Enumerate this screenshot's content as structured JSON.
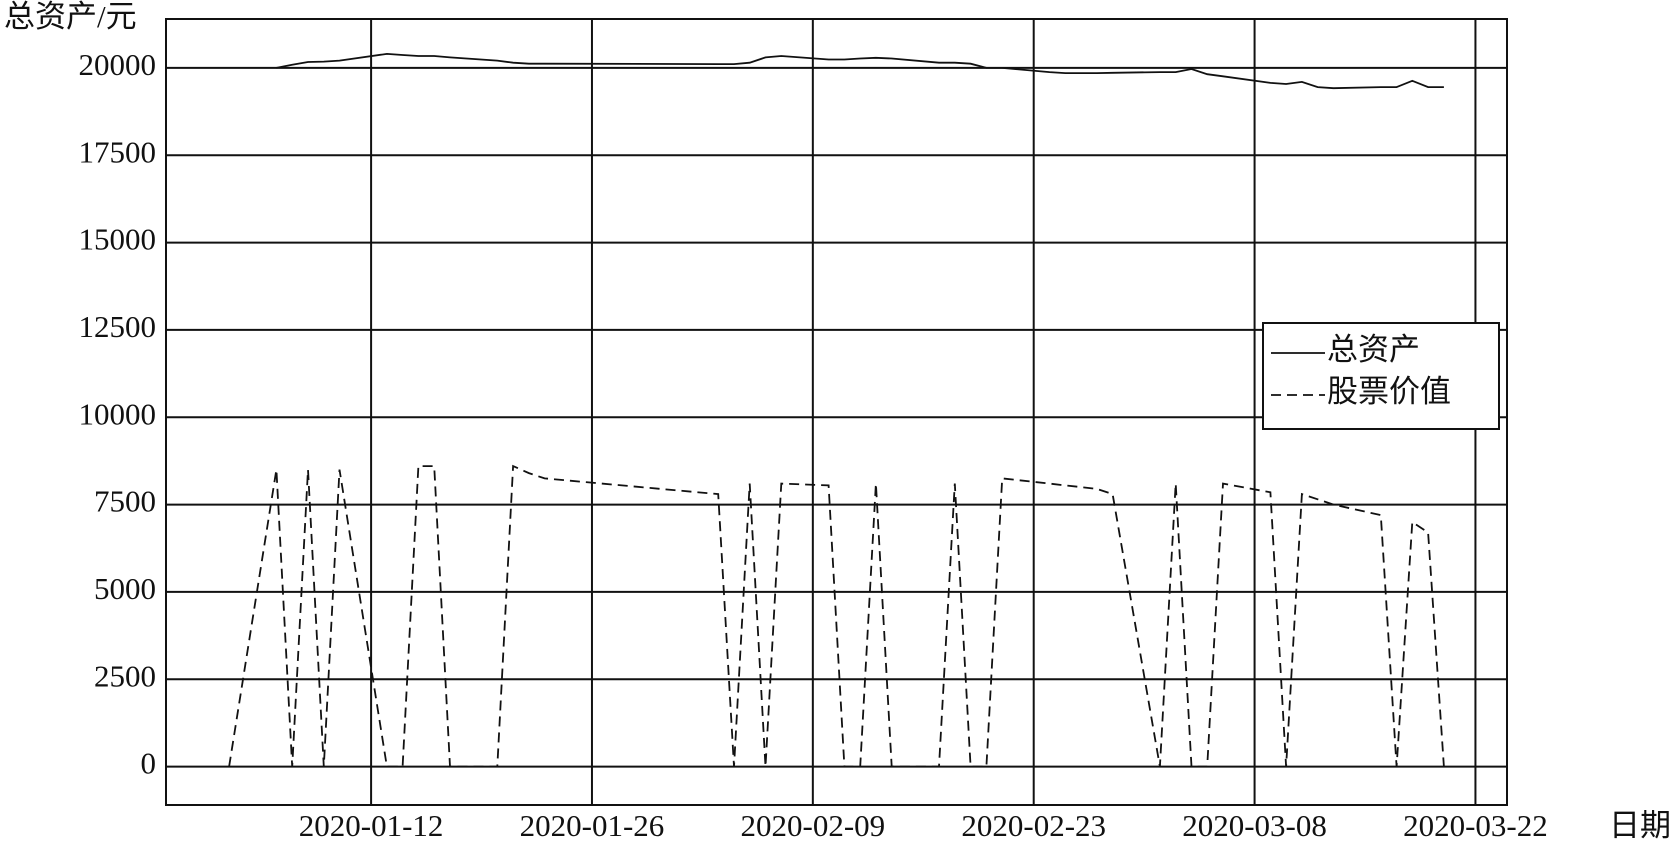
{
  "chart_data": {
    "type": "line",
    "y_label": "总资产/元",
    "x_label": "日期",
    "x": [
      "2020-01-03",
      "2020-01-06",
      "2020-01-07",
      "2020-01-08",
      "2020-01-09",
      "2020-01-10",
      "2020-01-13",
      "2020-01-14",
      "2020-01-15",
      "2020-01-16",
      "2020-01-17",
      "2020-01-20",
      "2020-01-21",
      "2020-01-22",
      "2020-01-23",
      "2020-02-03",
      "2020-02-04",
      "2020-02-05",
      "2020-02-06",
      "2020-02-07",
      "2020-02-10",
      "2020-02-11",
      "2020-02-12",
      "2020-02-13",
      "2020-02-14",
      "2020-02-17",
      "2020-02-18",
      "2020-02-19",
      "2020-02-20",
      "2020-02-21",
      "2020-02-24",
      "2020-02-25",
      "2020-02-26",
      "2020-02-27",
      "2020-02-28",
      "2020-03-02",
      "2020-03-03",
      "2020-03-04",
      "2020-03-05",
      "2020-03-06",
      "2020-03-09",
      "2020-03-10",
      "2020-03-11",
      "2020-03-12",
      "2020-03-13",
      "2020-03-16",
      "2020-03-17",
      "2020-03-18",
      "2020-03-19",
      "2020-03-20"
    ],
    "series": [
      {
        "name": "总资产",
        "color": "#111111",
        "dash": "solid",
        "values": [
          null,
          20000,
          20090,
          20170,
          20180,
          20210,
          20400,
          20370,
          20340,
          20340,
          20300,
          20210,
          20150,
          20120,
          20120,
          20110,
          20110,
          20150,
          20300,
          20340,
          20240,
          20240,
          20270,
          20290,
          20270,
          20150,
          20150,
          20120,
          20000,
          20000,
          19880,
          19850,
          19850,
          19850,
          19860,
          19880,
          19880,
          19970,
          19820,
          19760,
          19570,
          19540,
          19600,
          19450,
          19420,
          19450,
          19450,
          19630,
          19450,
          19450
        ]
      },
      {
        "name": "股票价值",
        "color": "#111111",
        "dash": "dashed",
        "values": [
          0,
          8500,
          0,
          8500,
          0,
          8500,
          0,
          0,
          8600,
          8600,
          0,
          0,
          8600,
          8400,
          8250,
          7800,
          0,
          8100,
          0,
          8100,
          8050,
          0,
          0,
          8100,
          0,
          0,
          8100,
          0,
          0,
          8250,
          8100,
          8050,
          8000,
          7950,
          7800,
          0,
          8100,
          0,
          0,
          8100,
          7850,
          0,
          7800,
          7650,
          7500,
          7200,
          0,
          7000,
          6700,
          0
        ]
      }
    ],
    "xlim": [
      "2019-12-30",
      "2020-03-24"
    ],
    "xticks": [
      "2020-01-12",
      "2020-01-26",
      "2020-02-09",
      "2020-02-23",
      "2020-03-08",
      "2020-03-22"
    ],
    "ylim": [
      -1100,
      21400
    ],
    "yticks": [
      0,
      2500,
      5000,
      7500,
      10000,
      12500,
      15000,
      17500,
      20000
    ],
    "grid": true,
    "legend": "center right"
  }
}
